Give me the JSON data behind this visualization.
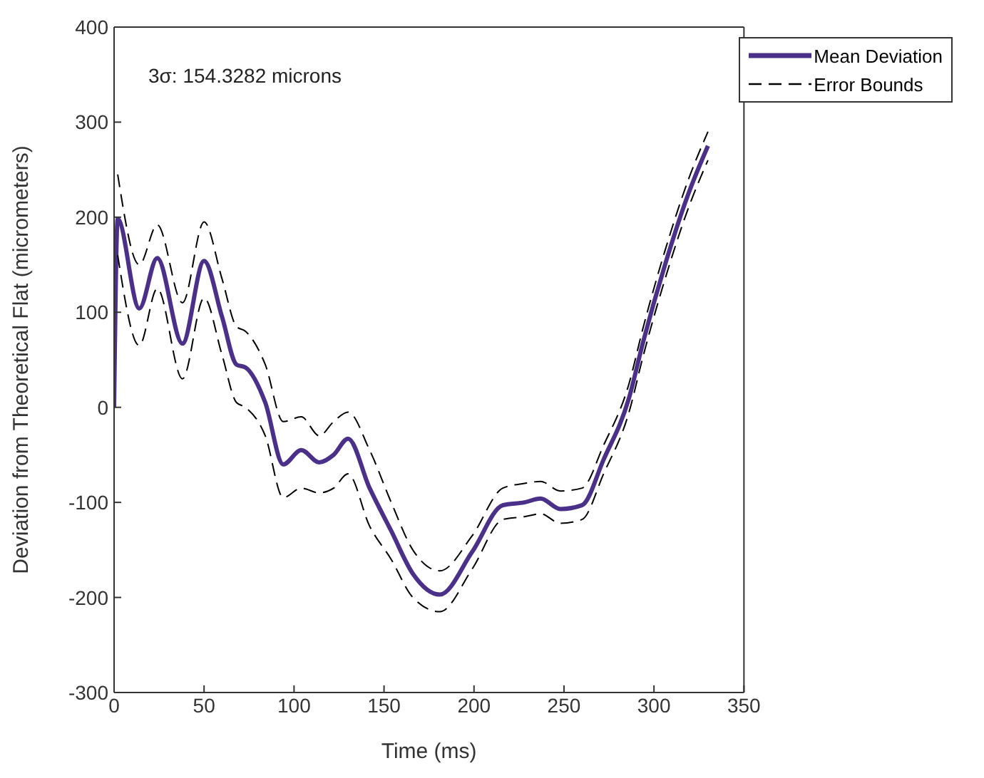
{
  "chart_data": {
    "type": "line",
    "xlabel": "Time (ms)",
    "ylabel": "Deviation from Theoretical Flat (micrometers)",
    "annotations": [
      "3σ: 154.3282 microns"
    ],
    "x": [
      0,
      2,
      14,
      24,
      38,
      50,
      60,
      68,
      73,
      84,
      94,
      104,
      114,
      122,
      130,
      142,
      154,
      166,
      181,
      199,
      216,
      228,
      237,
      248,
      260,
      272,
      286,
      294,
      306,
      319,
      330
    ],
    "series": [
      {
        "name": "Mean Deviation",
        "color": "#4a3088",
        "line_style": "solid",
        "values": [
          0,
          198,
          104,
          157,
          67,
          154,
          95,
          45,
          42,
          5,
          -60,
          -45,
          -58,
          -50,
          -33,
          -85,
          -130,
          -175,
          -197,
          -152,
          -103,
          -100,
          -96,
          -107,
          -103,
          -55,
          9,
          69,
          149,
          224,
          275
        ]
      },
      {
        "name": "Error Bounds",
        "color": "#000000",
        "line_style": "dashed",
        "values": [
          null,
          245,
          150,
          192,
          110,
          195,
          135,
          85,
          80,
          45,
          -15,
          -10,
          -30,
          -15,
          -5,
          -45,
          -100,
          -150,
          -172,
          -135,
          -85,
          -80,
          -78,
          -88,
          -85,
          -40,
          24,
          84,
          164,
          239,
          290
        ]
      },
      {
        "color": "#000000",
        "line_style": "dashed",
        "values": [
          null,
          160,
          65,
          125,
          30,
          115,
          55,
          5,
          0,
          -30,
          -95,
          -85,
          -90,
          -85,
          -70,
          -125,
          -160,
          -200,
          -215,
          -170,
          -118,
          -115,
          -112,
          -122,
          -118,
          -70,
          -6,
          54,
          134,
          209,
          260
        ]
      }
    ],
    "xlim": [
      0,
      350
    ],
    "xticks": [
      0,
      50,
      100,
      150,
      200,
      250,
      300,
      350
    ],
    "ylim": [
      -300,
      400
    ],
    "yticks": [
      -300,
      -200,
      -100,
      0,
      100,
      200,
      300,
      400
    ],
    "grid": false,
    "legend": "top right",
    "marker": "none"
  }
}
